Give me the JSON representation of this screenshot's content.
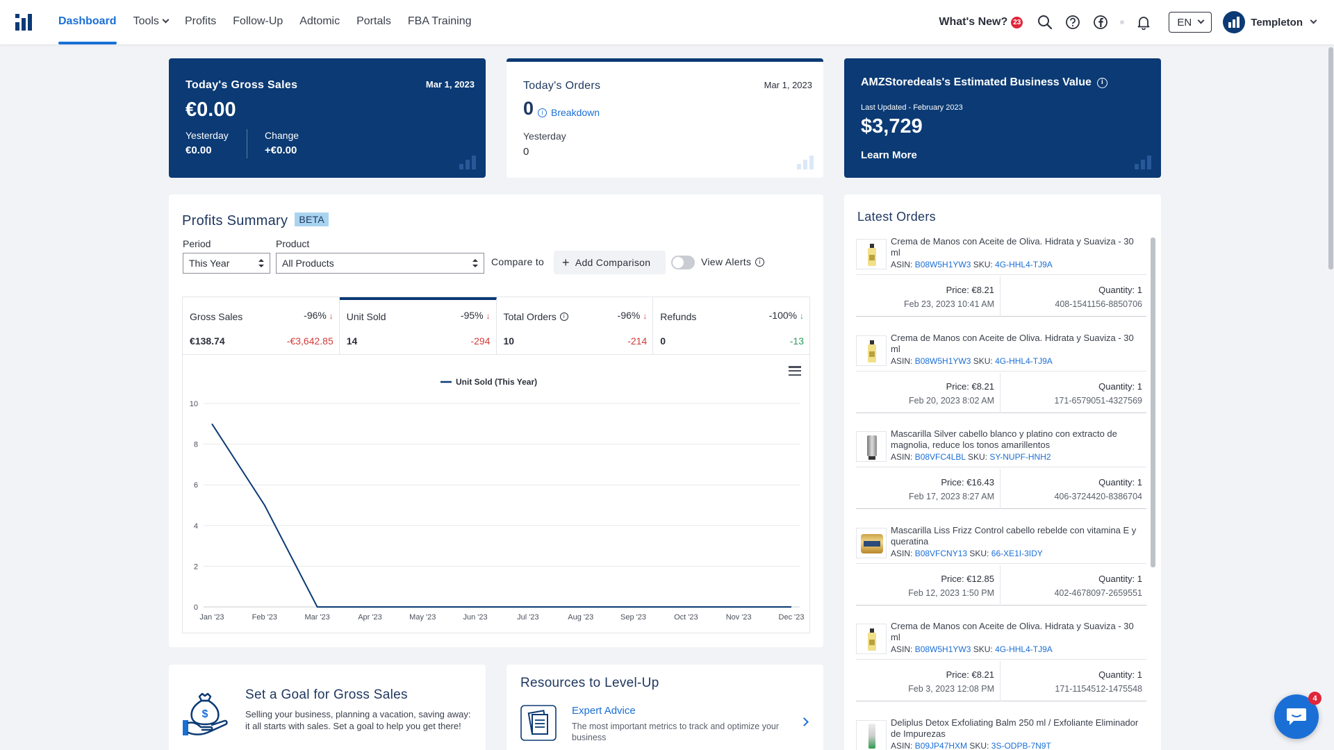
{
  "nav": {
    "items": [
      "Dashboard",
      "Tools",
      "Profits",
      "Follow-Up",
      "Adtomic",
      "Portals",
      "FBA Training"
    ],
    "active": "Dashboard",
    "whats_new": "What's New?",
    "whats_new_count": "23",
    "language": "EN",
    "user": "Templeton"
  },
  "cards": {
    "gross_sales": {
      "title": "Today's Gross Sales",
      "date": "Mar 1, 2023",
      "value": "€0.00",
      "yesterday_label": "Yesterday",
      "yesterday_value": "€0.00",
      "change_label": "Change",
      "change_value": "+€0.00"
    },
    "orders": {
      "title": "Today's Orders",
      "date": "Mar 1, 2023",
      "value": "0",
      "breakdown": "Breakdown",
      "yesterday_label": "Yesterday",
      "yesterday_value": "0"
    },
    "business_value": {
      "title": "AMZStoredeals's Estimated Business Value",
      "updated": "Last Updated - February 2023",
      "value": "$3,729",
      "link": "Learn More"
    }
  },
  "profits": {
    "title": "Profits Summary",
    "badge": "BETA",
    "period_label": "Period",
    "period_value": "This Year",
    "product_label": "Product",
    "product_value": "All Products",
    "compare_label": "Compare to",
    "add_comparison": "Add Comparison",
    "view_alerts": "View Alerts",
    "metrics": [
      {
        "name": "Gross Sales",
        "pct": "-96%",
        "value": "€138.74",
        "delta": "-€3,642.85",
        "trend": "down"
      },
      {
        "name": "Unit Sold",
        "pct": "-95%",
        "value": "14",
        "delta": "-294",
        "trend": "down"
      },
      {
        "name": "Total Orders",
        "pct": "-96%",
        "value": "10",
        "delta": "-214",
        "trend": "down"
      },
      {
        "name": "Refunds",
        "pct": "-100%",
        "value": "0",
        "delta": "-13",
        "trend": "down-good"
      }
    ]
  },
  "chart_data": {
    "type": "line",
    "categories": [
      "Jan '23",
      "Feb '23",
      "Mar '23",
      "Apr '23",
      "May '23",
      "Jun '23",
      "Jul '23",
      "Aug '23",
      "Sep '23",
      "Oct '23",
      "Nov '23",
      "Dec '23"
    ],
    "series": [
      {
        "name": "Unit Sold (This Year)",
        "values": [
          9,
          5,
          0,
          0,
          0,
          0,
          0,
          0,
          0,
          0,
          0,
          0
        ],
        "color": "#0b3a74"
      }
    ],
    "ylim": [
      0,
      10
    ],
    "yticks": [
      0,
      2,
      4,
      6,
      8,
      10
    ],
    "grid": true,
    "legend": "top-center",
    "xlabel": "",
    "ylabel": ""
  },
  "goal": {
    "title": "Set a Goal for Gross Sales",
    "text": "Selling your business, planning a vacation, saving away: it all starts with sales. Set a goal to help you get there!"
  },
  "resources": {
    "title": "Resources to Level-Up",
    "item_title": "Expert Advice",
    "item_text": "The most important metrics to track and optimize your business"
  },
  "latest_orders": {
    "title": "Latest Orders",
    "orders": [
      {
        "title": "Crema de Manos con Aceite de Oliva. Hidrata y Suaviza - 30 ml",
        "asin_label": "ASIN:",
        "asin": "B08W5H1YW3",
        "sku_label": "SKU:",
        "sku": "4G-HHL4-TJ9A",
        "price": "Price: €8.21",
        "date": "Feb 23, 2023 10:41 AM",
        "qty": "Quantity: 1",
        "order_id": "408-1541156-8850706",
        "thumb": "bottle-yellow"
      },
      {
        "title": "Crema de Manos con Aceite de Oliva. Hidrata y Suaviza - 30 ml",
        "asin_label": "ASIN:",
        "asin": "B08W5H1YW3",
        "sku_label": "SKU:",
        "sku": "4G-HHL4-TJ9A",
        "price": "Price: €8.21",
        "date": "Feb 20, 2023 8:02 AM",
        "qty": "Quantity: 1",
        "order_id": "171-6579051-4327569",
        "thumb": "bottle-yellow"
      },
      {
        "title": "Mascarilla Silver cabello blanco y platino con extracto de magnolia, reduce los tonos amarillentos",
        "asin_label": "ASIN:",
        "asin": "B08VFC4LBL",
        "sku_label": "SKU:",
        "sku": "SY-NUPF-HNH2",
        "price": "Price: €16.43",
        "date": "Feb 17, 2023 8:27 AM",
        "qty": "Quantity: 1",
        "order_id": "406-3724420-8386704",
        "thumb": "tube-silver"
      },
      {
        "title": "Mascarilla Liss Frizz Control cabello rebelde con vitamina E y queratina",
        "asin_label": "ASIN:",
        "asin": "B08VFCNY13",
        "sku_label": "SKU:",
        "sku": "66-XE1I-3IDY",
        "price": "Price: €12.85",
        "date": "Feb 12, 2023 1:50 PM",
        "qty": "Quantity: 1",
        "order_id": "402-4678097-2659551",
        "thumb": "jar-gold"
      },
      {
        "title": "Crema de Manos con Aceite de Oliva. Hidrata y Suaviza - 30 ml",
        "asin_label": "ASIN:",
        "asin": "B08W5H1YW3",
        "sku_label": "SKU:",
        "sku": "4G-HHL4-TJ9A",
        "price": "Price: €8.21",
        "date": "Feb 3, 2023 12:08 PM",
        "qty": "Quantity: 1",
        "order_id": "171-1154512-1475548",
        "thumb": "bottle-yellow"
      },
      {
        "title": "Deliplus Detox Exfoliating Balm 250 ml / Exfoliante Eliminador de Impurezas",
        "asin_label": "ASIN:",
        "asin": "B09JP47HXM",
        "sku_label": "SKU:",
        "sku": "3S-ODPB-7N9T",
        "thumb": "tube-green"
      }
    ]
  },
  "chat": {
    "count": "4"
  },
  "colors": {
    "brand_dark": "#0b3a74",
    "accent": "#1a6fd6",
    "negative": "#d33a3a",
    "positive": "#2a9b5a"
  }
}
